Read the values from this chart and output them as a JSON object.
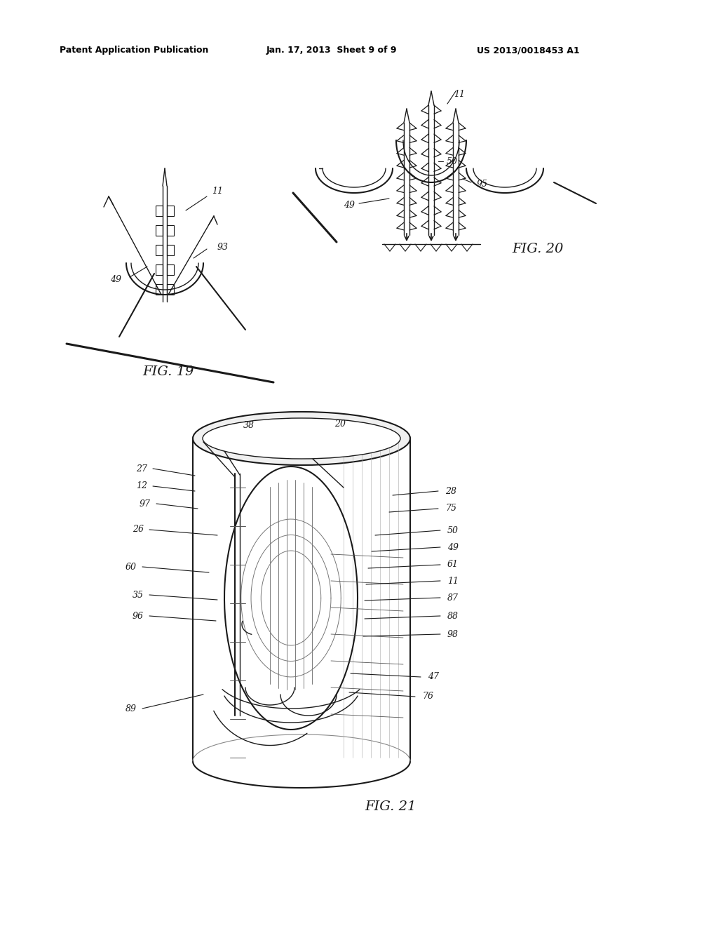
{
  "bg_color": "#ffffff",
  "line_color": "#1a1a1a",
  "header_text": "Patent Application Publication",
  "header_date": "Jan. 17, 2013  Sheet 9 of 9",
  "header_patent": "US 2013/0018453 A1",
  "fig19_label": "FIG. 19",
  "fig20_label": "FIG. 20",
  "fig21_label": "FIG. 21",
  "header_fontsize": 9,
  "label_fontsize": 9,
  "fig_label_fontsize": 14
}
